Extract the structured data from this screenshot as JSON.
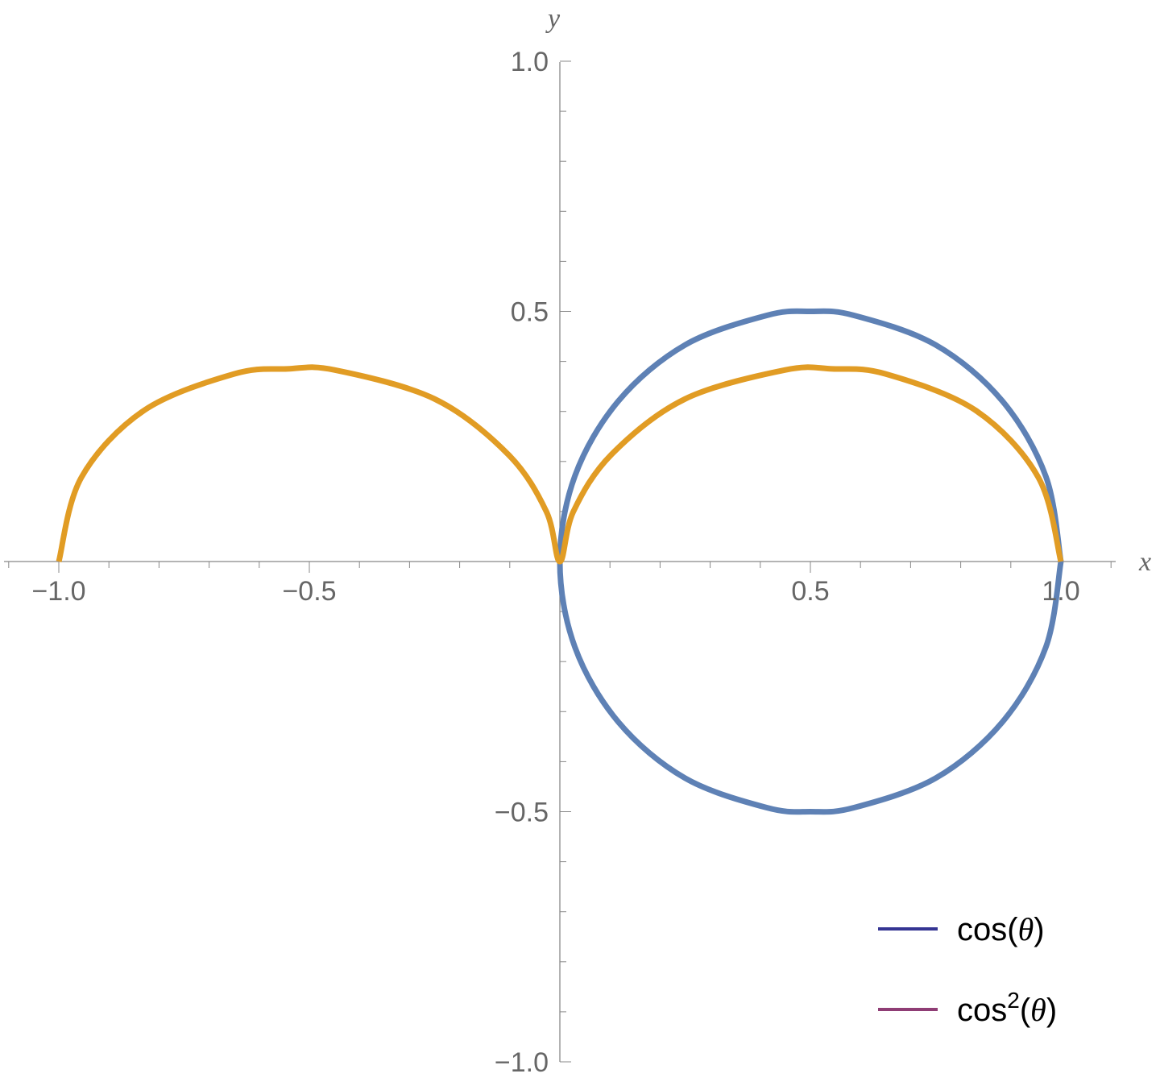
{
  "chart_data": {
    "type": "line",
    "xlabel": "x",
    "ylabel": "y",
    "xlim": [
      -1.1,
      1.1
    ],
    "ylim": [
      -1.0,
      1.0
    ],
    "x_ticks": [
      {
        "value": -1.0,
        "label": "−1.0"
      },
      {
        "value": -0.5,
        "label": "−0.5"
      },
      {
        "value": 0.5,
        "label": "0.5"
      },
      {
        "value": 1.0,
        "label": "1.0"
      }
    ],
    "y_ticks": [
      {
        "value": 1.0,
        "label": "1.0"
      },
      {
        "value": 0.5,
        "label": "0.5"
      },
      {
        "value": -0.5,
        "label": "−0.5"
      },
      {
        "value": -1.0,
        "label": "−1.0"
      }
    ],
    "minor_tick_step": 0.1,
    "grid": false,
    "legend_position": "bottom-right",
    "series": [
      {
        "name_base": "cos",
        "name_sup": "",
        "name_arg": "θ",
        "color": "#5E81B5",
        "legend_color": "#353593",
        "curve": "polar r = cos(θ), θ from 0 to π",
        "points": [
          [
            1,
            0
          ],
          [
            0.97,
            0.17
          ],
          [
            0.883,
            0.321
          ],
          [
            0.75,
            0.433
          ],
          [
            0.587,
            0.492
          ],
          [
            0.5,
            0.5
          ],
          [
            0.413,
            0.492
          ],
          [
            0.25,
            0.433
          ],
          [
            0.117,
            0.321
          ],
          [
            0.03,
            0.171
          ],
          [
            0,
            0
          ],
          [
            0.03,
            -0.171
          ],
          [
            0.117,
            -0.321
          ],
          [
            0.25,
            -0.433
          ],
          [
            0.413,
            -0.492
          ],
          [
            0.5,
            -0.5
          ],
          [
            0.587,
            -0.492
          ],
          [
            0.75,
            -0.433
          ],
          [
            0.883,
            -0.321
          ],
          [
            0.97,
            -0.171
          ],
          [
            1,
            0
          ]
        ]
      },
      {
        "name_base": "cos",
        "name_sup": "2",
        "name_arg": "θ",
        "color": "#E19C24",
        "legend_color": "#8F3D75",
        "curve": "polar r = cos²(θ), θ from 0 to π",
        "points": [
          [
            1,
            0
          ],
          [
            0.955,
            0.168
          ],
          [
            0.83,
            0.302
          ],
          [
            0.65,
            0.375
          ],
          [
            0.544,
            0.385
          ],
          [
            0.45,
            0.383
          ],
          [
            0.25,
            0.325
          ],
          [
            0.103,
            0.214
          ],
          [
            0.027,
            0.1
          ],
          [
            0,
            0
          ],
          [
            -0.027,
            0.1
          ],
          [
            -0.103,
            0.214
          ],
          [
            -0.25,
            0.325
          ],
          [
            -0.45,
            0.383
          ],
          [
            -0.544,
            0.385
          ],
          [
            -0.65,
            0.375
          ],
          [
            -0.83,
            0.302
          ],
          [
            -0.955,
            0.168
          ],
          [
            -1,
            0
          ]
        ]
      }
    ]
  }
}
